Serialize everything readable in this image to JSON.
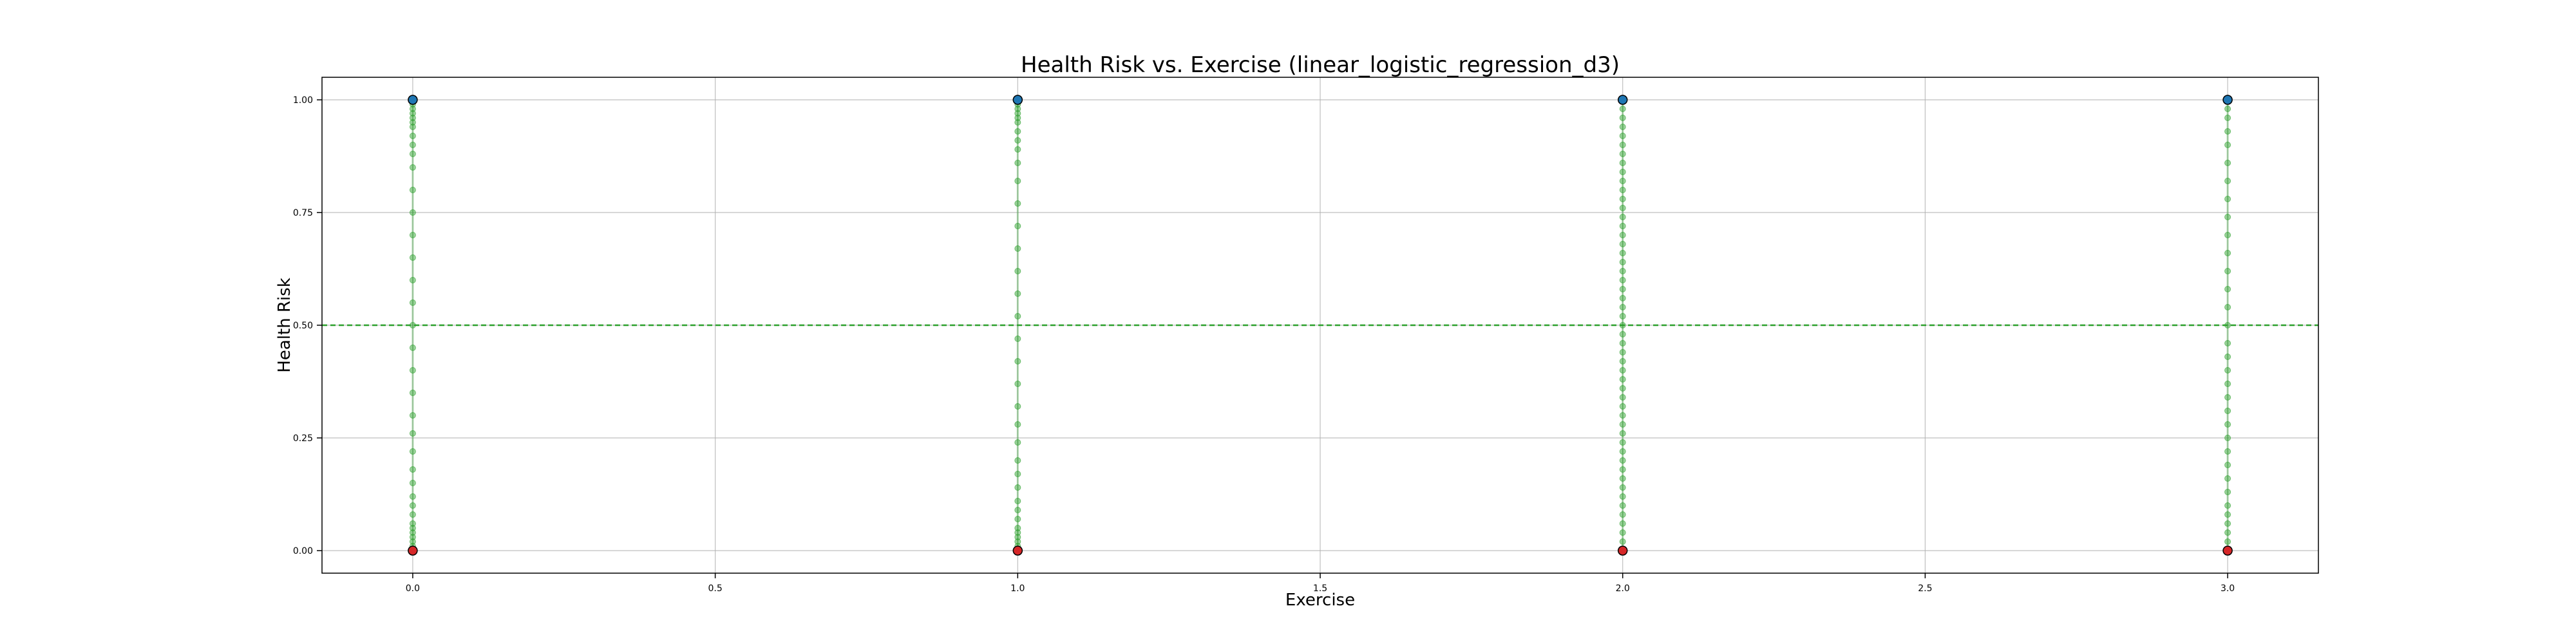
{
  "chart_data": {
    "type": "scatter",
    "title": "Health Risk vs. Exercise (linear_logistic_regression_d3)",
    "xlabel": "Exercise",
    "ylabel": "Health Risk",
    "xlim": [
      -0.15,
      3.15
    ],
    "ylim": [
      -0.05,
      1.05
    ],
    "x_ticks": [
      0.0,
      0.5,
      1.0,
      1.5,
      2.0,
      2.5,
      3.0
    ],
    "x_tick_labels": [
      "0.0",
      "0.5",
      "1.0",
      "1.5",
      "2.0",
      "2.5",
      "3.0"
    ],
    "y_ticks": [
      0.0,
      0.25,
      0.5,
      0.75,
      1.0
    ],
    "y_tick_labels": [
      "0.00",
      "0.25",
      "0.50",
      "0.75",
      "1.00"
    ],
    "grid": true,
    "threshold": 0.5,
    "threshold_color": "#2ca02c",
    "prediction_color": "#2ca02c",
    "positive_color": "#1f77b4",
    "negative_color": "#d62728",
    "actual_positive": {
      "x": [
        0,
        1,
        2,
        3
      ],
      "y": [
        1,
        1,
        1,
        1
      ]
    },
    "actual_negative": {
      "x": [
        0,
        1,
        2,
        3
      ],
      "y": [
        0,
        0,
        0,
        0
      ]
    },
    "predicted_probability_series": [
      {
        "x": 0,
        "y": [
          0.0,
          0.01,
          0.02,
          0.03,
          0.04,
          0.05,
          0.06,
          0.08,
          0.1,
          0.12,
          0.15,
          0.18,
          0.22,
          0.26,
          0.3,
          0.35,
          0.4,
          0.45,
          0.5,
          0.55,
          0.6,
          0.65,
          0.7,
          0.75,
          0.8,
          0.85,
          0.88,
          0.9,
          0.92,
          0.94,
          0.95,
          0.96,
          0.97,
          0.98,
          0.99,
          1.0
        ]
      },
      {
        "x": 1,
        "y": [
          0.0,
          0.01,
          0.02,
          0.03,
          0.04,
          0.05,
          0.07,
          0.09,
          0.11,
          0.14,
          0.17,
          0.2,
          0.24,
          0.28,
          0.32,
          0.37,
          0.42,
          0.47,
          0.52,
          0.57,
          0.62,
          0.67,
          0.72,
          0.77,
          0.82,
          0.86,
          0.89,
          0.91,
          0.93,
          0.95,
          0.96,
          0.97,
          0.98,
          0.99,
          1.0
        ]
      },
      {
        "x": 2,
        "y": [
          0.0,
          0.02,
          0.04,
          0.06,
          0.08,
          0.1,
          0.12,
          0.14,
          0.16,
          0.18,
          0.2,
          0.22,
          0.24,
          0.26,
          0.28,
          0.3,
          0.32,
          0.34,
          0.36,
          0.38,
          0.4,
          0.42,
          0.44,
          0.46,
          0.48,
          0.5,
          0.52,
          0.54,
          0.56,
          0.58,
          0.6,
          0.62,
          0.64,
          0.66,
          0.68,
          0.7,
          0.72,
          0.74,
          0.76,
          0.78,
          0.8,
          0.82,
          0.84,
          0.86,
          0.88,
          0.9,
          0.92,
          0.94,
          0.96,
          0.98,
          1.0
        ]
      },
      {
        "x": 3,
        "y": [
          0.0,
          0.02,
          0.04,
          0.06,
          0.08,
          0.1,
          0.13,
          0.16,
          0.19,
          0.22,
          0.25,
          0.28,
          0.31,
          0.34,
          0.37,
          0.4,
          0.43,
          0.46,
          0.5,
          0.54,
          0.58,
          0.62,
          0.66,
          0.7,
          0.74,
          0.78,
          0.82,
          0.86,
          0.9,
          0.93,
          0.96,
          0.98,
          1.0
        ]
      }
    ]
  }
}
